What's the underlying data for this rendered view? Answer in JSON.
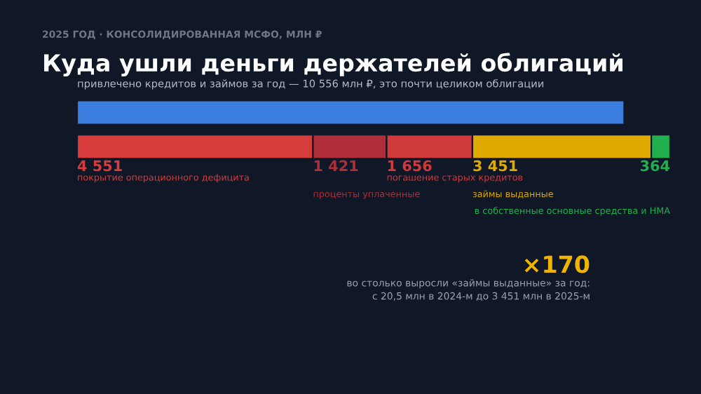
{
  "chart_data": {
    "type": "bar",
    "orientation": "horizontal",
    "stacked": true,
    "title": "Куда ушли деньги держателей облигаций",
    "subtitle": "привлечено кредитов и займов за год — 10 556 млн ₽, это почти целиком облигации",
    "annotations": [
      "2025 ГОД · КОНСОЛИДИРОВАННАЯ МСФО, МЛН ₽",
      "×170",
      "во столько выросли «займы выданные» за год:\nс 20,5 млн в 2024-м до 3 451 млн в 2025-м"
    ],
    "categories": [
      null,
      null
    ],
    "series": [
      {
        "color": "#3a7fe0",
        "values": [
          10556,
          null
        ]
      },
      {
        "name": "покрытие операционного дефицита",
        "color": "#d63c3c",
        "values": [
          null,
          4551
        ],
        "value_labels": [
          null,
          "4 551"
        ]
      },
      {
        "name": "проценты уплаченные",
        "color": "#b02e3a",
        "values": [
          null,
          1421
        ],
        "value_labels": [
          null,
          "1 421"
        ]
      },
      {
        "name": "погашение старых кредитов",
        "color": "#cf3b3d",
        "values": [
          null,
          1656
        ],
        "value_labels": [
          null,
          "1 656"
        ]
      },
      {
        "name": "займы выданные",
        "color": "#e0aa00",
        "values": [
          null,
          3451
        ],
        "value_labels": [
          null,
          "3 451"
        ]
      },
      {
        "name": "в собственные основные средства и НМА",
        "color": "#22b04e",
        "values": [
          null,
          364
        ],
        "value_labels": [
          null,
          "364"
        ]
      }
    ],
    "legend": false
  }
}
